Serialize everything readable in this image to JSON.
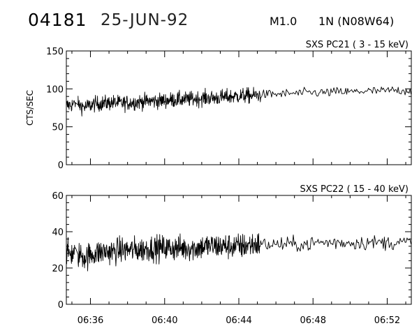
{
  "header": {
    "id": "04181",
    "date": "25-JUN-92",
    "class": "M1.0",
    "region": "1N (N08W64)"
  },
  "chart_data": [
    {
      "type": "line",
      "title": "SXS PC21  (  3 - 15 keV)",
      "ylabel": "CTS/SEC",
      "ylim": [
        0,
        150
      ],
      "yticks": [
        0,
        50,
        100,
        150
      ],
      "xlim": [
        "06:34:42",
        "06:53:18"
      ],
      "xticks": [
        "06:36",
        "06:40",
        "06:44",
        "06:48",
        "06:52"
      ],
      "series": [
        {
          "points": [
            [
              "06:34:42",
              78
            ],
            [
              "06:35:12",
              80
            ],
            [
              "06:35:42",
              76
            ],
            [
              "06:36:12",
              80
            ],
            [
              "06:36:42",
              81
            ],
            [
              "06:37:12",
              82
            ],
            [
              "06:37:42",
              81
            ],
            [
              "06:38:12",
              82
            ],
            [
              "06:38:42",
              83
            ],
            [
              "06:39:12",
              84
            ],
            [
              "06:39:42",
              84
            ],
            [
              "06:40:12",
              85
            ],
            [
              "06:40:42",
              86
            ],
            [
              "06:41:12",
              86
            ],
            [
              "06:41:42",
              87
            ],
            [
              "06:42:12",
              88
            ],
            [
              "06:42:42",
              88
            ],
            [
              "06:43:12",
              89
            ],
            [
              "06:43:42",
              90
            ],
            [
              "06:44:12",
              91
            ],
            [
              "06:44:42",
              91
            ],
            [
              "06:45:12",
              92
            ],
            [
              "06:45:42",
              93
            ],
            [
              "06:46:12",
              93
            ],
            [
              "06:46:42",
              94
            ],
            [
              "06:47:12",
              94
            ],
            [
              "06:47:42",
              95
            ],
            [
              "06:48:12",
              95
            ],
            [
              "06:48:42",
              95
            ],
            [
              "06:49:12",
              96
            ],
            [
              "06:49:42",
              96
            ],
            [
              "06:50:12",
              96
            ],
            [
              "06:50:42",
              97
            ],
            [
              "06:51:12",
              97
            ],
            [
              "06:51:42",
              97
            ],
            [
              "06:52:12",
              98
            ],
            [
              "06:52:42",
              98
            ],
            [
              "06:53:18",
              98
            ]
          ]
        }
      ]
    },
    {
      "type": "line",
      "title": "SXS PC22  ( 15 - 40 keV)",
      "ylabel": "",
      "ylim": [
        0,
        60
      ],
      "yticks": [
        0,
        20,
        40,
        60
      ],
      "xlim": [
        "06:34:42",
        "06:53:18"
      ],
      "xticks": [
        "06:36",
        "06:40",
        "06:44",
        "06:48",
        "06:52"
      ],
      "series": [
        {
          "points": [
            [
              "06:34:42",
              28
            ],
            [
              "06:35:12",
              28
            ],
            [
              "06:35:42",
              26
            ],
            [
              "06:36:12",
              28
            ],
            [
              "06:36:42",
              29
            ],
            [
              "06:37:12",
              29
            ],
            [
              "06:37:42",
              30
            ],
            [
              "06:38:12",
              30
            ],
            [
              "06:38:42",
              30
            ],
            [
              "06:39:12",
              31
            ],
            [
              "06:39:42",
              31
            ],
            [
              "06:40:12",
              31
            ],
            [
              "06:40:42",
              31
            ],
            [
              "06:41:12",
              31
            ],
            [
              "06:41:42",
              31
            ],
            [
              "06:42:12",
              32
            ],
            [
              "06:42:42",
              32
            ],
            [
              "06:43:12",
              32
            ],
            [
              "06:43:42",
              32
            ],
            [
              "06:44:12",
              32
            ],
            [
              "06:44:42",
              33
            ],
            [
              "06:45:12",
              33
            ],
            [
              "06:45:42",
              33
            ],
            [
              "06:46:12",
              33
            ],
            [
              "06:46:42",
              33
            ],
            [
              "06:47:12",
              33
            ],
            [
              "06:47:42",
              33
            ],
            [
              "06:48:12",
              34
            ],
            [
              "06:48:42",
              34
            ],
            [
              "06:49:12",
              34
            ],
            [
              "06:49:42",
              34
            ],
            [
              "06:50:12",
              34
            ],
            [
              "06:50:42",
              34
            ],
            [
              "06:51:12",
              34
            ],
            [
              "06:51:42",
              34
            ],
            [
              "06:52:12",
              34
            ],
            [
              "06:52:42",
              34
            ],
            [
              "06:53:18",
              34
            ]
          ]
        }
      ]
    }
  ]
}
